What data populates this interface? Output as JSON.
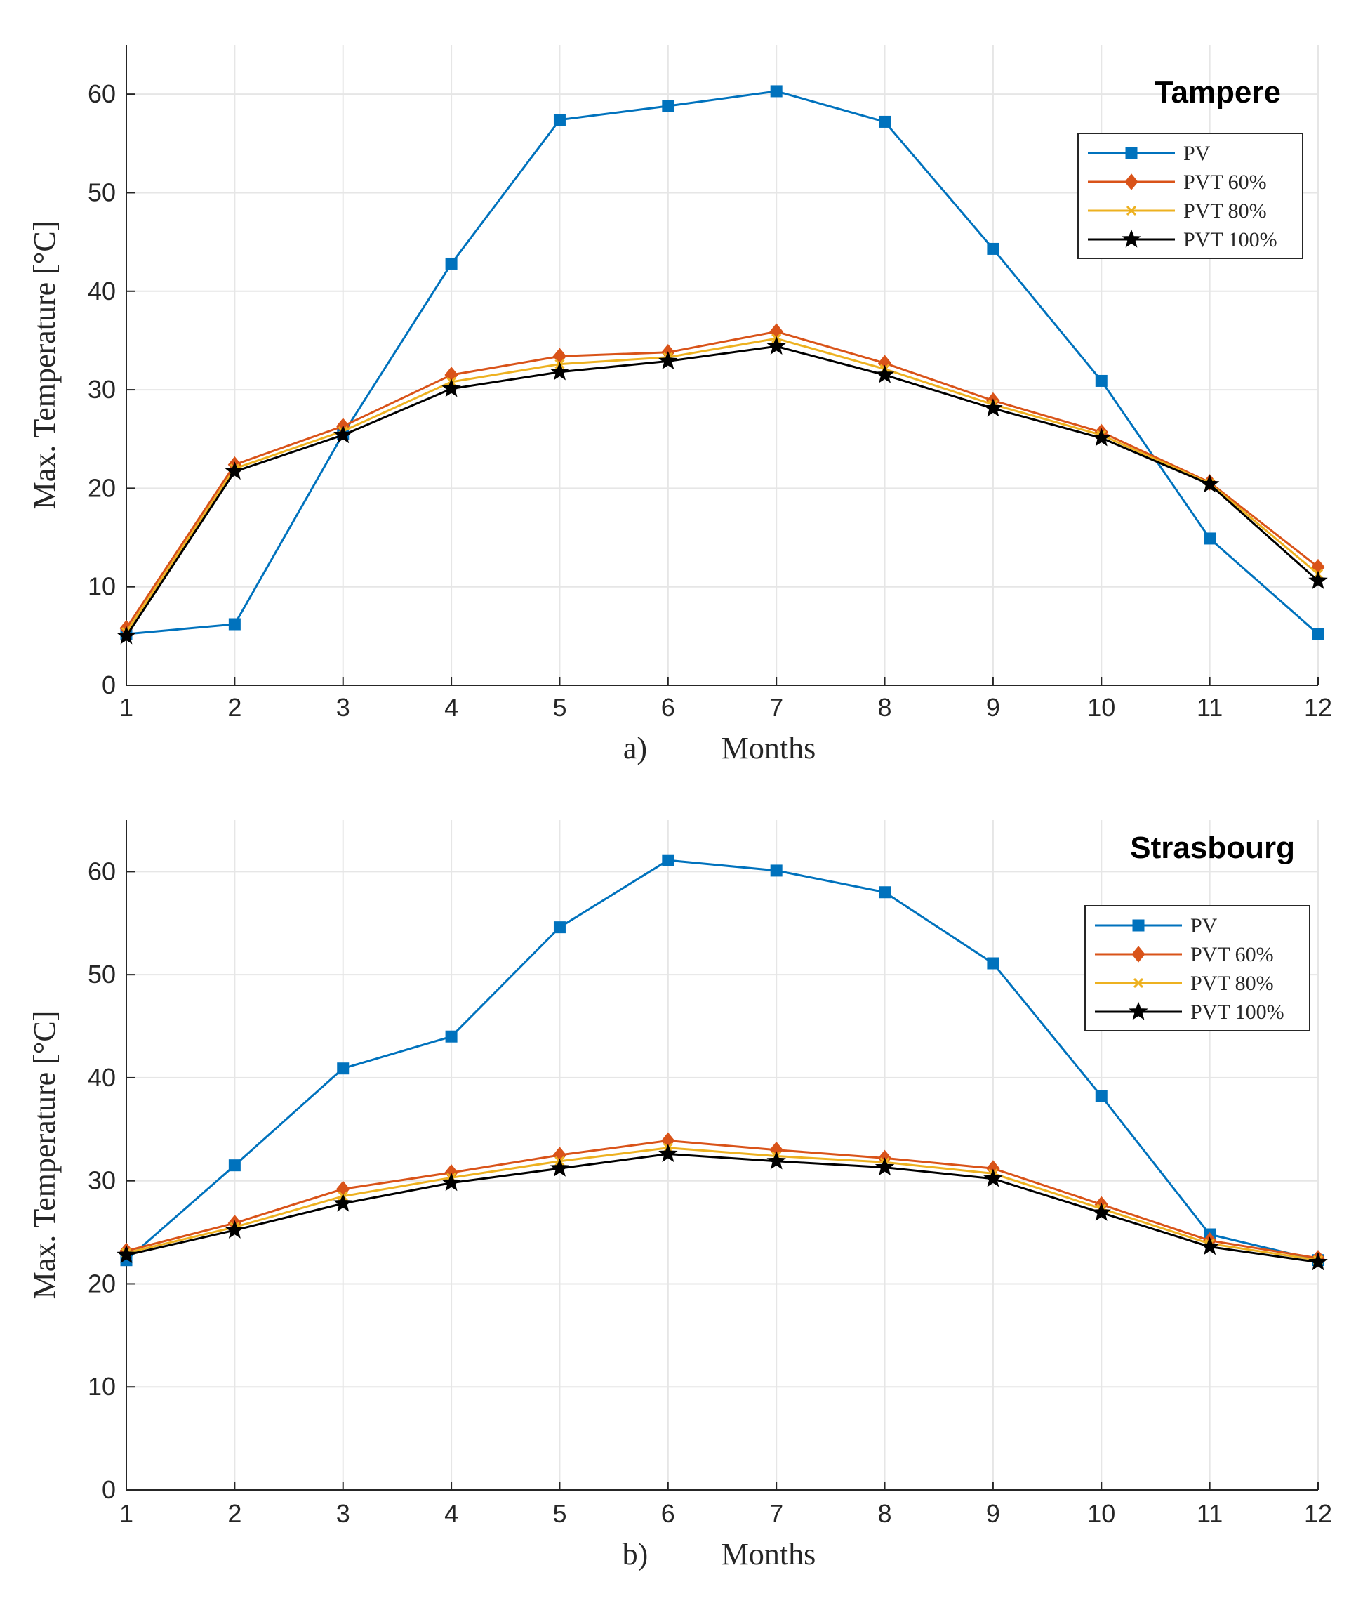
{
  "chart_data": [
    {
      "type": "line",
      "panel_label": "a)",
      "title": "Tampere",
      "xlabel": "Months",
      "ylabel": "Max. Temperature [°C]",
      "xlim": [
        1,
        12
      ],
      "ylim": [
        0,
        65
      ],
      "xticks": [
        1,
        2,
        3,
        4,
        5,
        6,
        7,
        8,
        9,
        10,
        11,
        12
      ],
      "yticks": [
        0,
        10,
        20,
        30,
        40,
        50,
        60
      ],
      "grid": true,
      "legend_position": "top-right",
      "x": [
        1,
        2,
        3,
        4,
        5,
        6,
        7,
        8,
        9,
        10,
        11,
        12
      ],
      "series": [
        {
          "name": "PV",
          "color": "#0072BD",
          "marker": "square",
          "values": [
            5.2,
            6.2,
            25.5,
            42.8,
            57.4,
            58.8,
            60.3,
            57.2,
            44.3,
            30.9,
            14.9,
            5.2
          ]
        },
        {
          "name": "PVT 60%",
          "color": "#D95319",
          "marker": "diamond",
          "values": [
            5.8,
            22.4,
            26.3,
            31.5,
            33.4,
            33.8,
            35.9,
            32.7,
            28.9,
            25.7,
            20.6,
            12.0
          ]
        },
        {
          "name": "PVT 80%",
          "color": "#EDB120",
          "marker": "x",
          "values": [
            5.4,
            22.0,
            25.8,
            30.8,
            32.6,
            33.3,
            35.2,
            32.1,
            28.5,
            25.4,
            20.5,
            11.3
          ]
        },
        {
          "name": "PVT 100%",
          "color": "#000000",
          "marker": "star",
          "values": [
            5.0,
            21.7,
            25.4,
            30.1,
            31.8,
            32.9,
            34.4,
            31.5,
            28.1,
            25.1,
            20.4,
            10.6
          ]
        }
      ]
    },
    {
      "type": "line",
      "panel_label": "b)",
      "title": "Strasbourg",
      "xlabel": "Months",
      "ylabel": "Max. Temperature [°C]",
      "xlim": [
        1,
        12
      ],
      "ylim": [
        0,
        65
      ],
      "xticks": [
        1,
        2,
        3,
        4,
        5,
        6,
        7,
        8,
        9,
        10,
        11,
        12
      ],
      "yticks": [
        0,
        10,
        20,
        30,
        40,
        50,
        60
      ],
      "grid": true,
      "legend_position": "top-right",
      "x": [
        1,
        2,
        3,
        4,
        5,
        6,
        7,
        8,
        9,
        10,
        11,
        12
      ],
      "series": [
        {
          "name": "PV",
          "color": "#0072BD",
          "marker": "square",
          "values": [
            22.3,
            31.5,
            40.9,
            44.0,
            54.6,
            61.1,
            60.1,
            58.0,
            51.1,
            38.2,
            24.8,
            22.3
          ]
        },
        {
          "name": "PVT 60%",
          "color": "#D95319",
          "marker": "diamond",
          "values": [
            23.2,
            25.9,
            29.2,
            30.8,
            32.5,
            33.9,
            33.0,
            32.2,
            31.2,
            27.7,
            24.2,
            22.5
          ]
        },
        {
          "name": "PVT 80%",
          "color": "#EDB120",
          "marker": "x",
          "values": [
            23.0,
            25.5,
            28.5,
            30.3,
            31.9,
            33.2,
            32.4,
            31.8,
            30.7,
            27.3,
            23.9,
            22.3
          ]
        },
        {
          "name": "PVT 100%",
          "color": "#000000",
          "marker": "star",
          "values": [
            22.8,
            25.2,
            27.8,
            29.8,
            31.2,
            32.6,
            31.9,
            31.3,
            30.2,
            26.9,
            23.6,
            22.1
          ]
        }
      ]
    }
  ]
}
